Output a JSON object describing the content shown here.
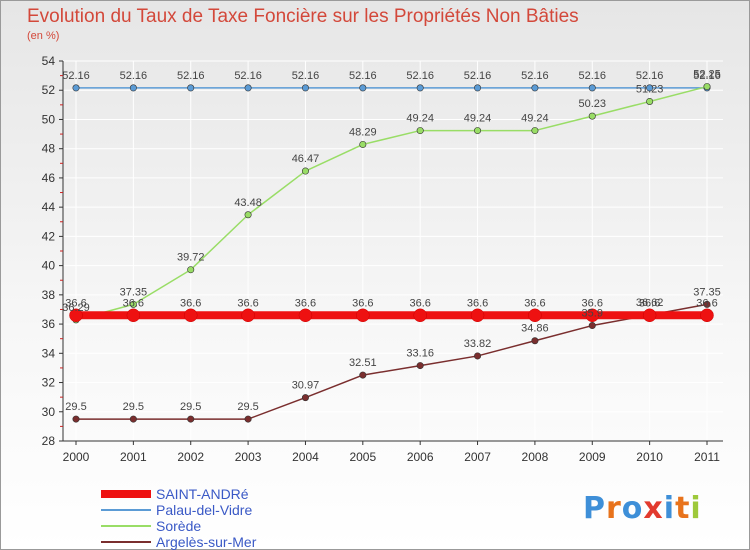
{
  "colors": {
    "title": "#d3483a",
    "legend_text": "#3a59c6",
    "axis": "#333333",
    "grid": "#ffffff"
  },
  "logo": {
    "letters": [
      "P",
      "r",
      "o",
      "x",
      "i",
      "t",
      "i"
    ],
    "colors": [
      "#3e8fd8",
      "#e8731c",
      "#3e8fd8",
      "#e23a2e",
      "#3e8fd8",
      "#e8731c",
      "#9ec93b"
    ]
  },
  "chart_data": {
    "type": "line",
    "title": "Evolution du Taux de Taxe Foncière sur les Propriétés Non Bâties",
    "subtitle": "(en %)",
    "xlabel": "",
    "ylabel": "",
    "x": [
      "2000",
      "2001",
      "2002",
      "2003",
      "2004",
      "2005",
      "2006",
      "2007",
      "2008",
      "2009",
      "2010",
      "2011"
    ],
    "ylim": [
      28,
      54
    ],
    "yticks": [
      28,
      30,
      32,
      34,
      36,
      38,
      40,
      42,
      44,
      46,
      48,
      50,
      52,
      54
    ],
    "grid": true,
    "legend_position": "bottom-left",
    "series": [
      {
        "name": "SAINT-ANDRé",
        "color": "#ee1111",
        "style": "thick",
        "values": [
          36.6,
          36.6,
          36.6,
          36.6,
          36.6,
          36.6,
          36.6,
          36.6,
          36.6,
          36.6,
          36.6,
          36.6
        ],
        "labels": [
          "36.6",
          "36.6",
          "36.6",
          "36.6",
          "36.6",
          "36.6",
          "36.6",
          "36.6",
          "36.6",
          "36.6",
          "36.6",
          "36.6"
        ]
      },
      {
        "name": "Palau-del-Vidre",
        "color": "#5b9bd5",
        "style": "thin",
        "values": [
          52.16,
          52.16,
          52.16,
          52.16,
          52.16,
          52.16,
          52.16,
          52.16,
          52.16,
          52.16,
          52.16,
          52.16
        ],
        "labels": [
          "52.16",
          "52.16",
          "52.16",
          "52.16",
          "52.16",
          "52.16",
          "52.16",
          "52.16",
          "52.16",
          "52.16",
          "52.16",
          "52.16"
        ]
      },
      {
        "name": "Sorède",
        "color": "#99dd66",
        "style": "thin",
        "values": [
          36.29,
          37.35,
          39.72,
          43.48,
          46.47,
          48.29,
          49.24,
          49.24,
          49.24,
          50.23,
          51.23,
          52.25
        ],
        "labels": [
          "36.29",
          "37.35",
          "39.72",
          "43.48",
          "46.47",
          "48.29",
          "49.24",
          "49.24",
          "49.24",
          "50.23",
          "51.23",
          "52.25"
        ]
      },
      {
        "name": "Argelès-sur-Mer",
        "color": "#7a2e2e",
        "style": "thin",
        "values": [
          29.5,
          29.5,
          29.5,
          29.5,
          30.97,
          32.51,
          33.16,
          33.82,
          34.86,
          35.9,
          36.62,
          37.35
        ],
        "labels": [
          "29.5",
          "29.5",
          "29.5",
          "29.5",
          "30.97",
          "32.51",
          "33.16",
          "33.82",
          "34.86",
          "35.9",
          "36.62",
          "37.35"
        ]
      }
    ]
  }
}
